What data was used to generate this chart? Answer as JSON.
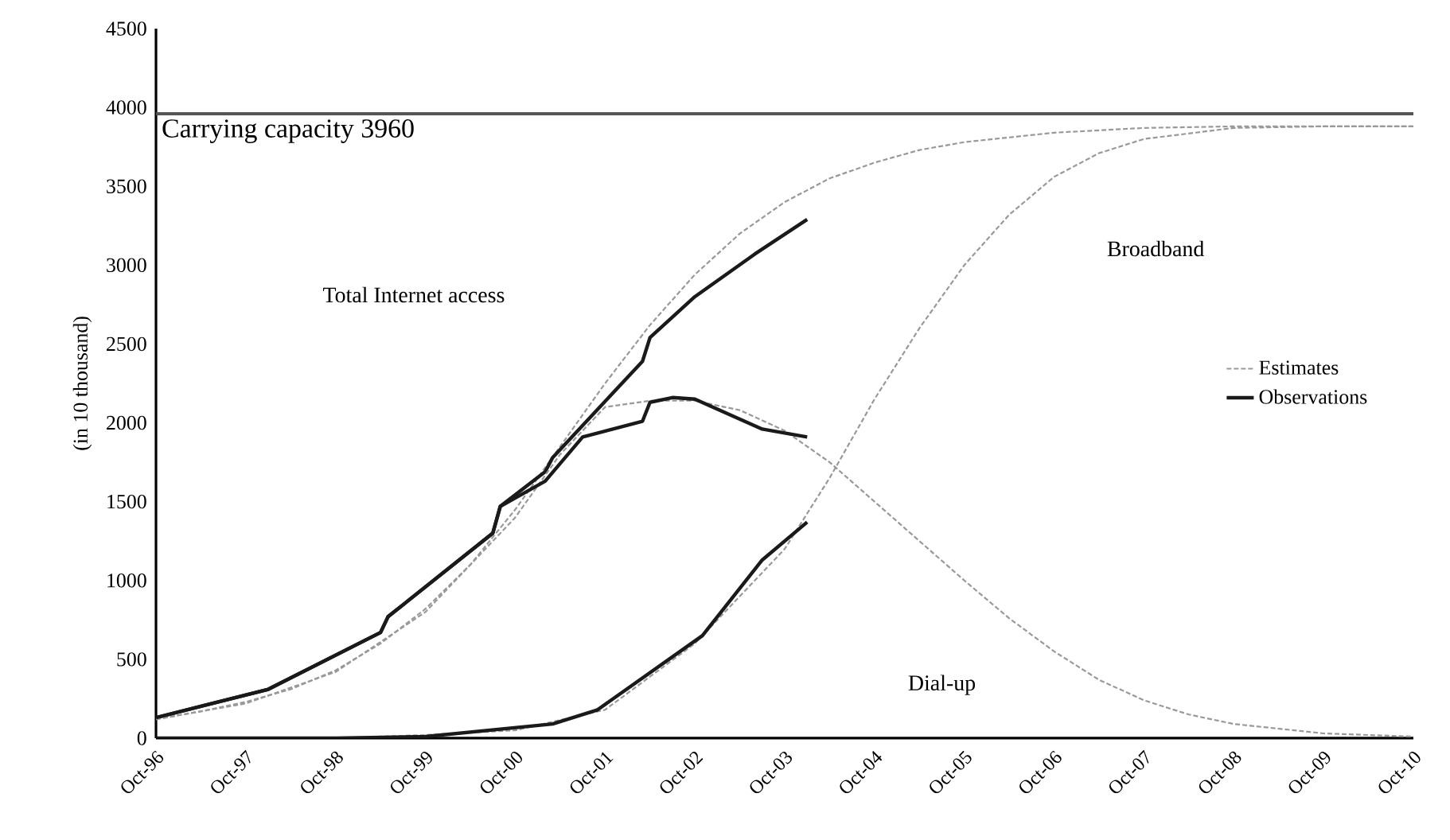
{
  "chart_data": {
    "type": "line",
    "ylabel": "(in 10 thousand)",
    "xlim": [
      "1996-10",
      "2010-10"
    ],
    "ylim": [
      0,
      4500
    ],
    "xticks": [
      {
        "value": "1996-10",
        "label": "Oct-96"
      },
      {
        "value": "1997-10",
        "label": "Oct-97"
      },
      {
        "value": "1998-10",
        "label": "Oct-98"
      },
      {
        "value": "1999-10",
        "label": "Oct-99"
      },
      {
        "value": "2000-10",
        "label": "Oct-00"
      },
      {
        "value": "2001-10",
        "label": "Oct-01"
      },
      {
        "value": "2002-10",
        "label": "Oct-02"
      },
      {
        "value": "2003-10",
        "label": "Oct-03"
      },
      {
        "value": "2004-10",
        "label": "Oct-04"
      },
      {
        "value": "2005-10",
        "label": "Oct-05"
      },
      {
        "value": "2006-10",
        "label": "Oct-06"
      },
      {
        "value": "2007-10",
        "label": "Oct-07"
      },
      {
        "value": "2008-10",
        "label": "Oct-08"
      },
      {
        "value": "2009-10",
        "label": "Oct-09"
      },
      {
        "value": "2010-10",
        "label": "Oct-10"
      }
    ],
    "yticks": [
      0,
      500,
      1000,
      1500,
      2000,
      2500,
      3000,
      3500,
      4000,
      4500
    ],
    "grid": false,
    "legend": "right",
    "marker": "none",
    "series": [
      {
        "name": "Estimates",
        "color": "#999999",
        "line_style": "dashed",
        "x": [
          "1996-10",
          "1997-04",
          "1997-10",
          "1998-04",
          "1998-10",
          "1999-04",
          "1999-10",
          "2000-04",
          "2000-10",
          "2001-04",
          "2001-10",
          "2002-04",
          "2002-10",
          "2003-04",
          "2003-10",
          "2004-04",
          "2004-10",
          "2005-04",
          "2005-10",
          "2006-10",
          "2007-10",
          "2008-10",
          "2009-10",
          "2010-10"
        ],
        "values": [
          120,
          170,
          230,
          310,
          430,
          600,
          820,
          1100,
          1450,
          1850,
          2250,
          2620,
          2940,
          3200,
          3400,
          3550,
          3650,
          3730,
          3780,
          3840,
          3870,
          3880,
          3880,
          3880
        ]
      },
      {
        "name": "Observations",
        "color": "#1a1a1a",
        "line_style": "solid",
        "x": [
          "1996-10",
          "1998-01",
          "1999-04",
          "1999-05",
          "2000-07",
          "2000-08",
          "2001-02",
          "2001-03",
          "2002-03",
          "2002-04",
          "2002-10",
          "2003-06",
          "2004-01"
        ],
        "values": [
          130,
          310,
          670,
          770,
          1300,
          1470,
          1690,
          1780,
          2390,
          2540,
          2800,
          3070,
          3290
        ]
      },
      {
        "color": "#999999",
        "line_style": "dashed",
        "x": [
          "1996-10",
          "1997-10",
          "1998-10",
          "1999-10",
          "2000-10",
          "2001-04",
          "2001-10",
          "2002-04",
          "2002-10",
          "2003-04",
          "2003-10",
          "2004-04",
          "2004-10",
          "2005-04",
          "2005-10",
          "2006-04",
          "2006-10",
          "2007-04",
          "2007-10",
          "2008-04",
          "2008-10",
          "2009-10",
          "2010-10"
        ],
        "values": [
          120,
          220,
          420,
          800,
          1400,
          1800,
          2100,
          2140,
          2140,
          2080,
          1950,
          1750,
          1500,
          1250,
          1000,
          760,
          550,
          370,
          240,
          150,
          90,
          30,
          10
        ]
      },
      {
        "color": "#1a1a1a",
        "line_style": "solid",
        "x": [
          "1996-10",
          "1998-01",
          "1999-04",
          "1999-05",
          "2000-07",
          "2000-08",
          "2001-02",
          "2001-07",
          "2002-03",
          "2002-04",
          "2002-07",
          "2002-10",
          "2003-07",
          "2004-01"
        ],
        "values": [
          130,
          310,
          670,
          770,
          1300,
          1470,
          1630,
          1910,
          2010,
          2130,
          2160,
          2150,
          1960,
          1910
        ]
      },
      {
        "color": "#999999",
        "line_style": "dashed",
        "x": [
          "1996-10",
          "1998-10",
          "1999-10",
          "2000-10",
          "2001-10",
          "2002-10",
          "2003-10",
          "2004-04",
          "2004-10",
          "2005-04",
          "2005-10",
          "2006-04",
          "2006-10",
          "2007-04",
          "2007-10",
          "2008-10",
          "2009-10",
          "2010-10"
        ],
        "values": [
          0,
          0,
          20,
          50,
          180,
          600,
          1200,
          1650,
          2150,
          2600,
          3000,
          3320,
          3560,
          3710,
          3800,
          3870,
          3880,
          3880
        ]
      },
      {
        "color": "#1a1a1a",
        "line_style": "solid",
        "x": [
          "1996-10",
          "1998-10",
          "1999-10",
          "2001-03",
          "2001-09",
          "2002-11",
          "2003-07",
          "2004-01"
        ],
        "values": [
          0,
          0,
          10,
          90,
          180,
          650,
          1130,
          1370
        ]
      }
    ],
    "ref_lines": [
      {
        "axis": "y",
        "value": 3960,
        "label": "Carrying capacity 3960",
        "color": "#555555"
      }
    ],
    "annotations": [
      "Total Internet access",
      "Broadband",
      "Dial-up"
    ]
  }
}
